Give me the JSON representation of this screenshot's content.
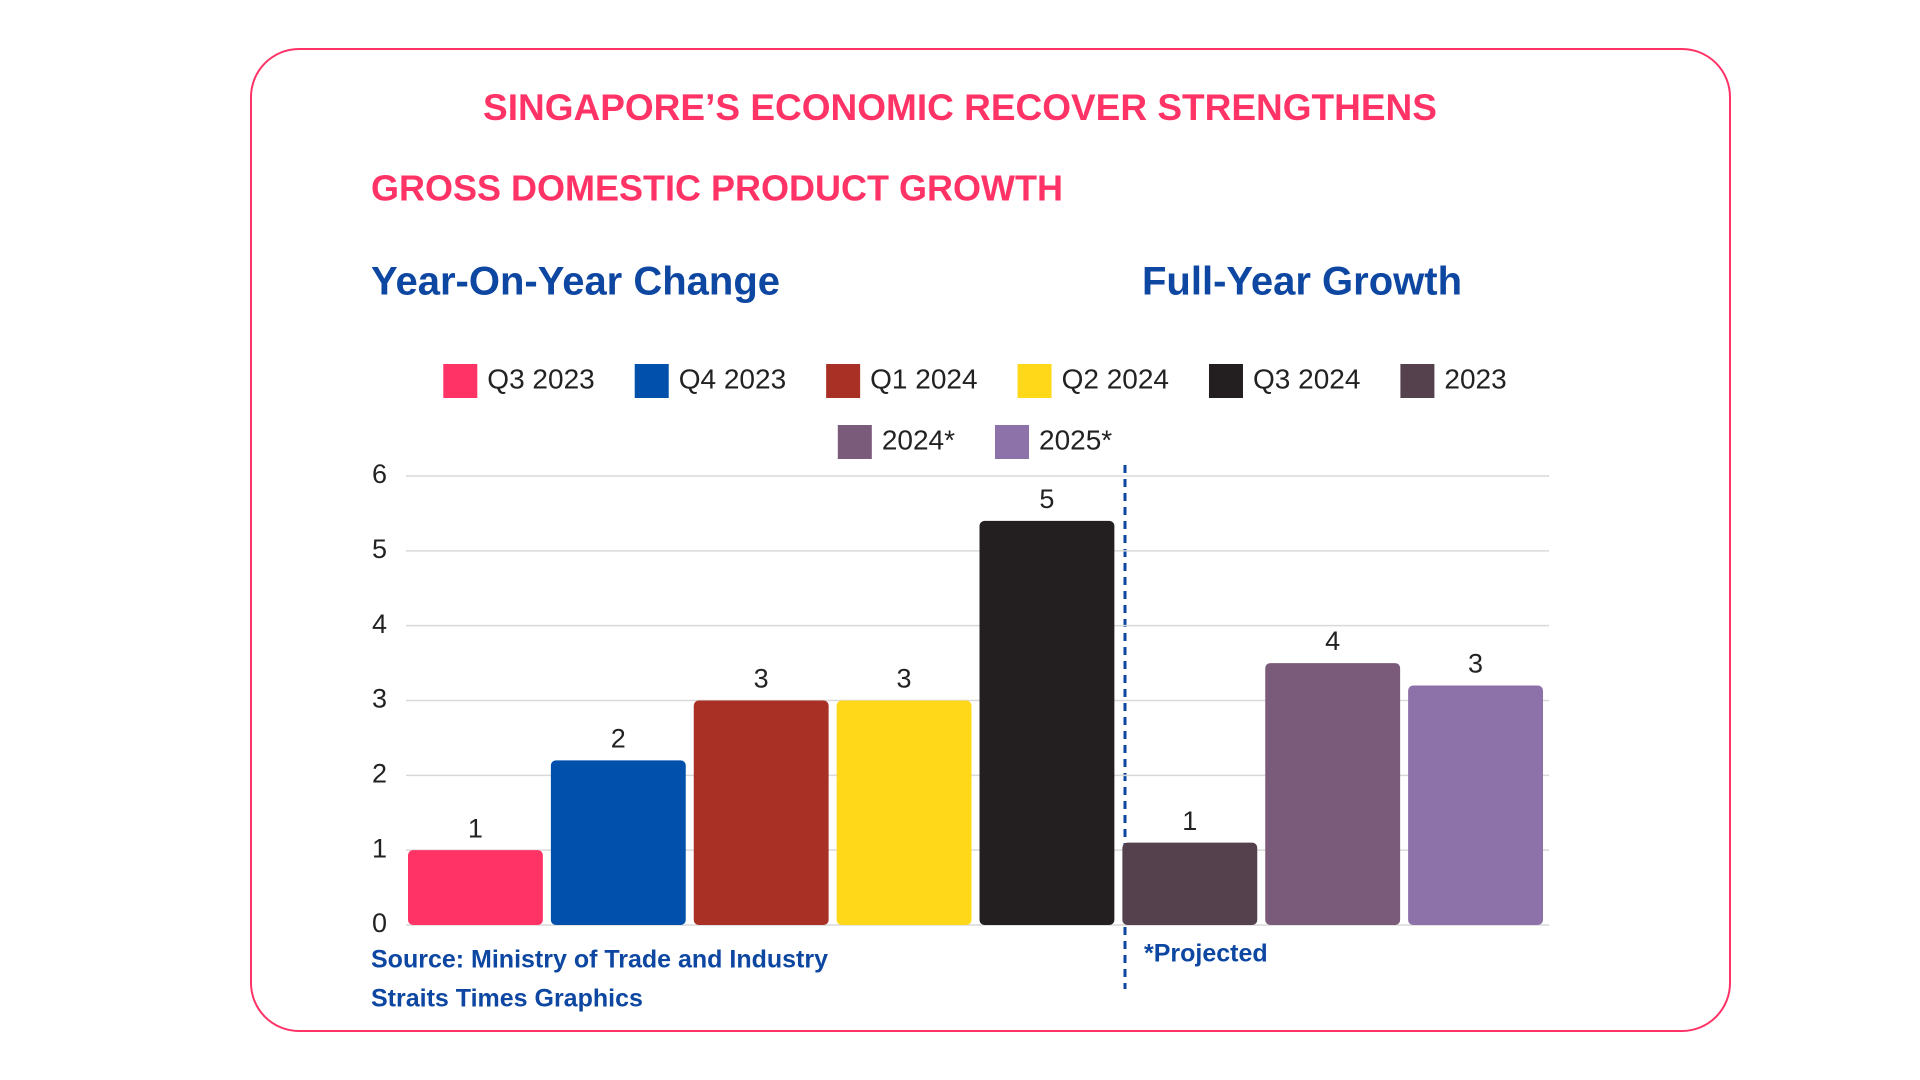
{
  "chart_data": {
    "type": "bar",
    "title": "SINGAPORE’S ECONOMIC RECOVER STRENGTHENS",
    "subtitle": "GROSS DOMESTIC PRODUCT GROWTH",
    "panel_titles": [
      "Year-On-Year Change",
      "Full-Year Growth"
    ],
    "source": [
      "Source: Ministry of Trade and Industry",
      "Straits Times Graphics"
    ],
    "footnote": "*Projected",
    "series": [
      {
        "name": "Q3 2023",
        "color": "#ff3366",
        "values": [
          1.0
        ],
        "value_labels": [
          "1"
        ]
      },
      {
        "name": "Q4 2023",
        "color": "#0050ac",
        "values": [
          2.2
        ],
        "value_labels": [
          "2"
        ]
      },
      {
        "name": "Q1 2024",
        "color": "#a83025",
        "values": [
          3.0
        ],
        "value_labels": [
          "3"
        ]
      },
      {
        "name": "Q2 2024",
        "color": "#ffd81a",
        "values": [
          3.0
        ],
        "value_labels": [
          "3"
        ]
      },
      {
        "name": "Q3 2024",
        "color": "#231f20",
        "values": [
          5.4
        ],
        "value_labels": [
          "5"
        ]
      },
      {
        "name": "2023",
        "color": "#55404d",
        "values": [
          1.1
        ],
        "value_labels": [
          "1"
        ]
      },
      {
        "name": "2024*",
        "color": "#7a5c7a",
        "values": [
          3.5
        ],
        "value_labels": [
          "4"
        ]
      },
      {
        "name": "2025*",
        "color": "#8c72a8",
        "values": [
          3.2
        ],
        "value_labels": [
          "3"
        ]
      }
    ],
    "ylim": [
      0,
      6
    ],
    "yticks": [
      0,
      1,
      2,
      3,
      4,
      5,
      6
    ],
    "grid": true
  }
}
